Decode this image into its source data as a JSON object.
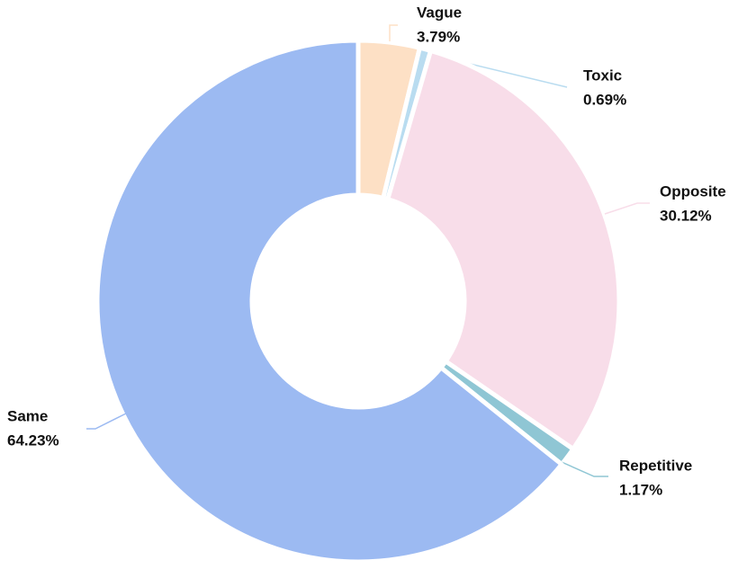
{
  "chart_data": {
    "type": "donut",
    "categories": [
      "Vague",
      "Toxic",
      "Opposite",
      "Repetitive",
      "Same"
    ],
    "values": [
      3.79,
      0.69,
      30.12,
      1.17,
      64.23
    ],
    "value_labels": [
      "3.79%",
      "0.69%",
      "30.12%",
      "1.17%",
      "64.23%"
    ],
    "colors": [
      "#fde0c5",
      "#b9dcf0",
      "#f8dde9",
      "#8fc6d4",
      "#9cbaf2"
    ]
  }
}
